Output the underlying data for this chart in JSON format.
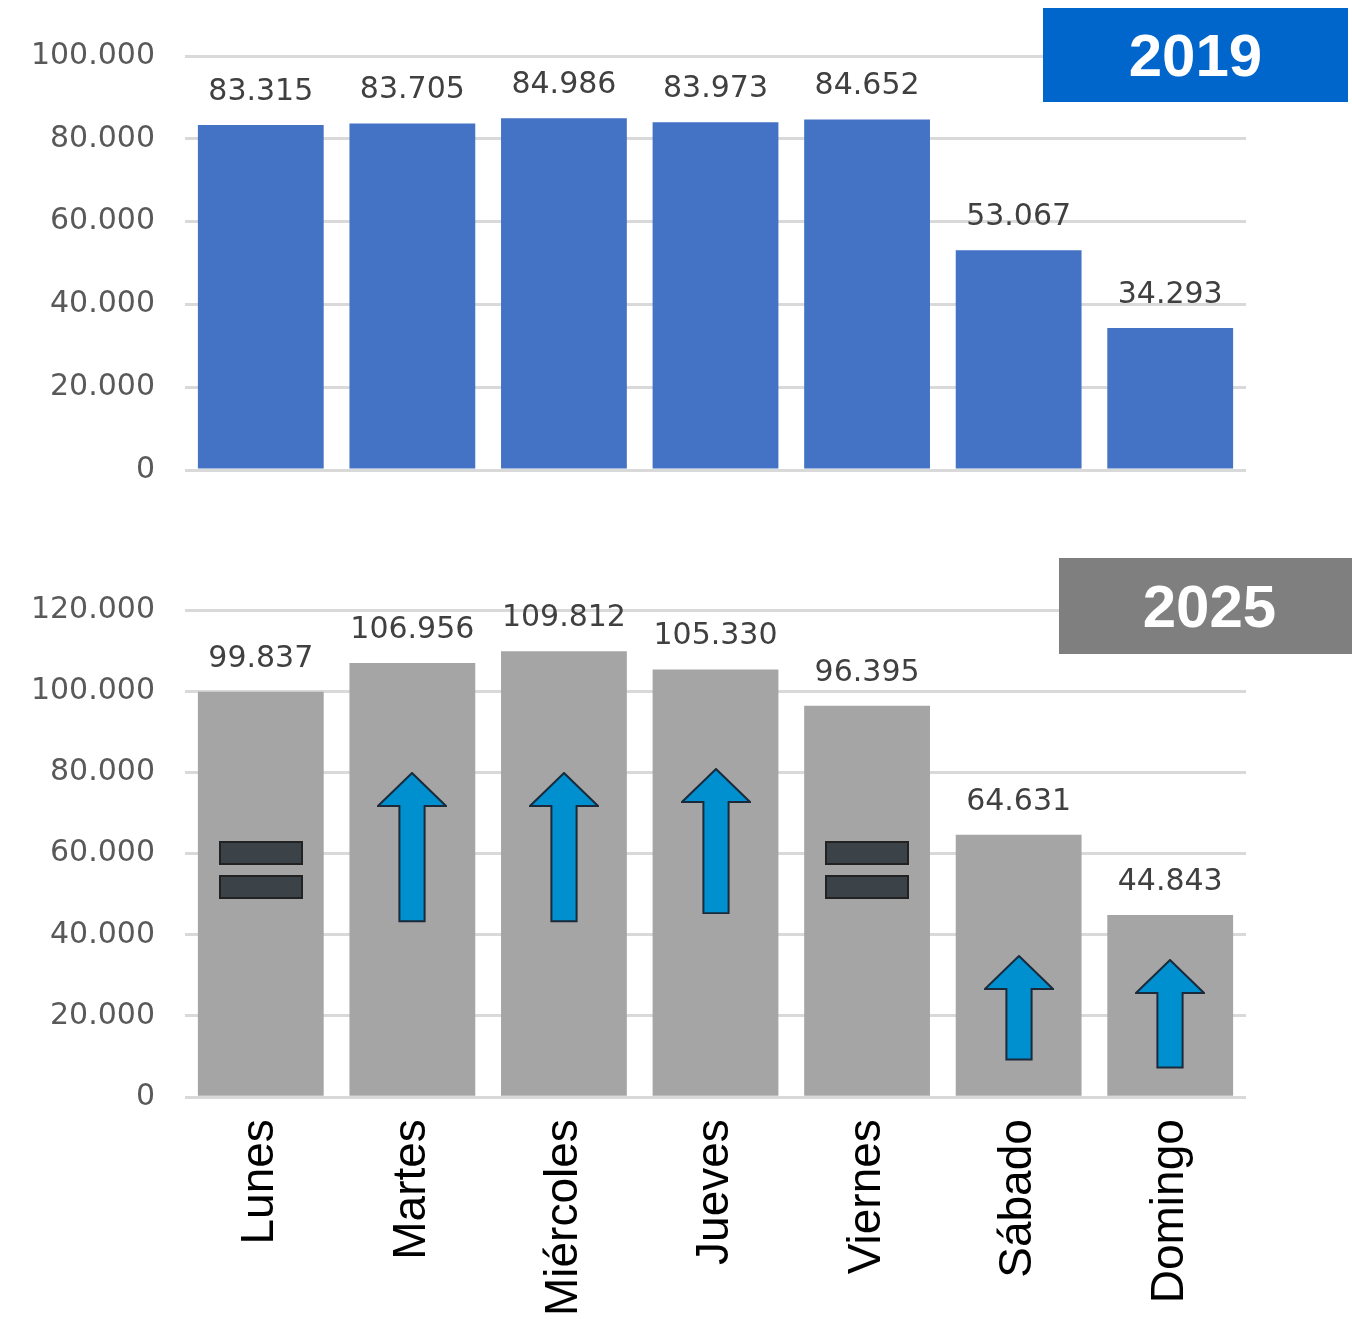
{
  "chart_data": [
    {
      "type": "bar",
      "title": "2019",
      "categories": [
        null,
        null,
        null,
        null,
        null,
        null,
        null
      ],
      "values": [
        83315,
        83705,
        84986,
        83973,
        84652,
        53067,
        34293
      ],
      "value_labels": [
        "83.315",
        "83.705",
        "84.986",
        "83.973",
        "84.652",
        "53.067",
        "34.293"
      ],
      "color": "#4472c4",
      "ylim": [
        0,
        100000
      ],
      "yticks": [
        {
          "value": 0,
          "label": "0"
        },
        {
          "value": 20000,
          "label": "20.000"
        },
        {
          "value": 40000,
          "label": "40.000"
        },
        {
          "value": 60000,
          "label": "60.000"
        },
        {
          "value": 80000,
          "label": "80.000"
        },
        {
          "value": 100000,
          "label": "100.000"
        }
      ],
      "grid": "y",
      "tick_labels": "y"
    },
    {
      "type": "bar",
      "title": "2025",
      "categories": [
        "Lunes",
        "Martes",
        "Miércoles",
        "Jueves",
        "Viernes",
        "Sábado",
        "Domingo"
      ],
      "values": [
        99837,
        106956,
        109812,
        105330,
        96395,
        64631,
        44843
      ],
      "value_labels": [
        "99.837",
        "106.956",
        "109.812",
        "105.330",
        "96.395",
        "64.631",
        "44.843"
      ],
      "color": "#a5a5a5",
      "ylim": [
        0,
        120000
      ],
      "yticks": [
        {
          "value": 0,
          "label": "0"
        },
        {
          "value": 20000,
          "label": "20.000"
        },
        {
          "value": 40000,
          "label": "40.000"
        },
        {
          "value": 60000,
          "label": "60.000"
        },
        {
          "value": 80000,
          "label": "80.000"
        },
        {
          "value": 100000,
          "label": "100.000"
        },
        {
          "value": 120000,
          "label": "120.000"
        }
      ],
      "grid": "y"
    }
  ]
}
